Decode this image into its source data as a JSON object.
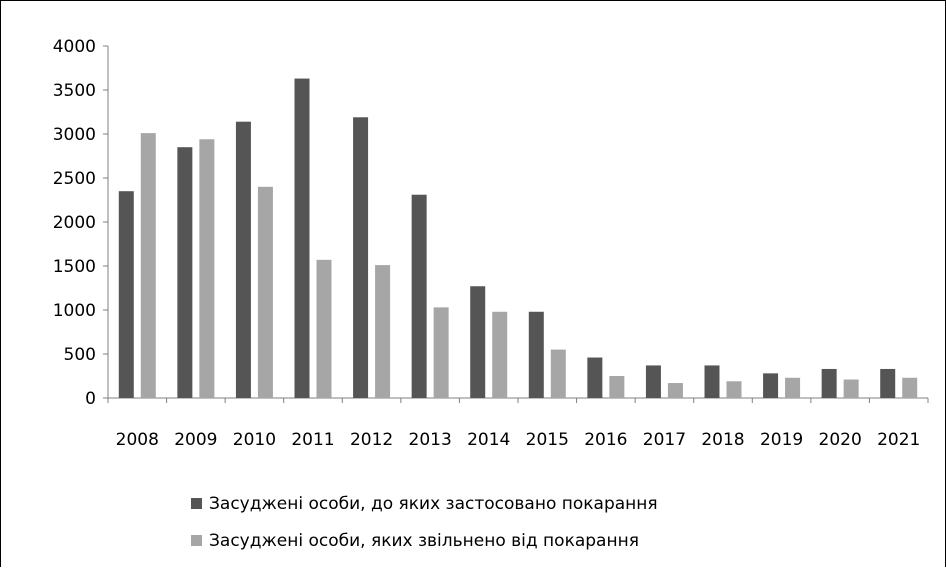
{
  "chart_data": {
    "type": "bar",
    "title": "",
    "xlabel": "",
    "ylabel": "",
    "categories": [
      "2008",
      "2009",
      "2010",
      "2011",
      "2012",
      "2013",
      "2014",
      "2015",
      "2016",
      "2017",
      "2018",
      "2019",
      "2020",
      "2021"
    ],
    "series": [
      {
        "name": "Засуджені особи, до яких застосовано покарання",
        "color": "#555555",
        "values": [
          2350,
          2850,
          3140,
          3630,
          3190,
          2310,
          1270,
          980,
          460,
          370,
          370,
          280,
          330,
          330
        ]
      },
      {
        "name": "Засуджені особи, яких звільнено від покарання",
        "color": "#a6a6a6",
        "values": [
          3010,
          2940,
          2400,
          1570,
          1510,
          1030,
          980,
          550,
          250,
          170,
          190,
          230,
          210,
          230
        ]
      }
    ],
    "ylim": [
      0,
      4000
    ],
    "yticks": [
      0,
      500,
      1000,
      1500,
      2000,
      2500,
      3000,
      3500,
      4000
    ],
    "grid": false,
    "legend_position": "bottom"
  }
}
